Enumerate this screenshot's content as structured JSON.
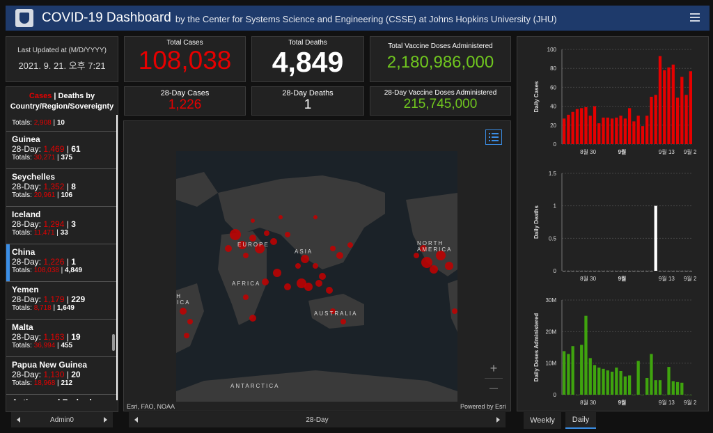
{
  "header": {
    "title": "COVID-19 Dashboard",
    "subtitle": "by the Center for Systems Science and Engineering (CSSE) at Johns Hopkins University (JHU)"
  },
  "updated": {
    "label": "Last Updated at (M/D/YYYY)",
    "value": "2021. 9. 21. 오후 7:21"
  },
  "stats": {
    "total_cases_label": "Total Cases",
    "total_cases": "108,038",
    "total_deaths_label": "Total Deaths",
    "total_deaths": "4,849",
    "total_vaccine_label": "Total Vaccine Doses Administered",
    "total_vaccine": "2,180,986,000",
    "cases28_label": "28-Day Cases",
    "cases28": "1,226",
    "deaths28_label": "28-Day Deaths",
    "deaths28": "1",
    "vaccine28_label": "28-Day Vaccine Doses Administered",
    "vaccine28": "215,745,000"
  },
  "list": {
    "head_cases": "Cases",
    "head_sep": " | ",
    "head_rest": "Deaths by",
    "head_line2": "Country/Region/Sovereignty",
    "partial_totals_prefix": "Totals: ",
    "partial_totals_cases": "2,908",
    "partial_totals_deaths": "10",
    "day_prefix": "28-Day: ",
    "totals_prefix": "Totals: ",
    "items": [
      {
        "name": "Guinea",
        "d_cases": "1,469",
        "d_deaths": "61",
        "t_cases": "30,271",
        "t_deaths": "375"
      },
      {
        "name": "Seychelles",
        "d_cases": "1,352",
        "d_deaths": "8",
        "t_cases": "20,961",
        "t_deaths": "106"
      },
      {
        "name": "Iceland",
        "d_cases": "1,294",
        "d_deaths": "3",
        "t_cases": "11,471",
        "t_deaths": "33"
      },
      {
        "name": "China",
        "d_cases": "1,226",
        "d_deaths": "1",
        "t_cases": "108,038",
        "t_deaths": "4,849"
      },
      {
        "name": "Yemen",
        "d_cases": "1,179",
        "d_deaths": "229",
        "t_cases": "8,718",
        "t_deaths": "1,649"
      },
      {
        "name": "Malta",
        "d_cases": "1,163",
        "d_deaths": "19",
        "t_cases": "36,994",
        "t_deaths": "455"
      },
      {
        "name": "Papua New Guinea",
        "d_cases": "1,130",
        "d_deaths": "20",
        "t_cases": "18,968",
        "t_deaths": "212"
      },
      {
        "name": "Antigua and Barbuda"
      }
    ],
    "pager_label": "Admin0"
  },
  "map": {
    "labels": [
      "EUROPE",
      "ASIA",
      "NORTH AMERICA",
      "AFRICA",
      "SOUTH AMERICA",
      "AUSTRALIA",
      "ANTARCTICA"
    ],
    "attribution": "Esri, FAO, NOAA",
    "powered": "Powered by Esri",
    "pager_label": "28-Day",
    "zoom_in": "+",
    "zoom_out": "—"
  },
  "tabs": {
    "weekly": "Weekly",
    "daily": "Daily"
  },
  "colors": {
    "cases": "#e60000",
    "deaths": "#ffffff",
    "vaccine": "#70c61f",
    "accent": "#3b8ee6"
  },
  "chart_data": [
    {
      "type": "bar",
      "ylabel": "Daily Cases",
      "ylim": [
        0,
        100
      ],
      "yticks": [
        "0",
        "20",
        "40",
        "60",
        "80",
        "100"
      ],
      "xticks": [
        "8월 30",
        "9월",
        "9월 13",
        "9월 2"
      ],
      "values": [
        27,
        31,
        34,
        37,
        38,
        39,
        30,
        40,
        22,
        28,
        28,
        27,
        28,
        30,
        27,
        38,
        24,
        30,
        19,
        30,
        50,
        52,
        93,
        78,
        81,
        84,
        49,
        71,
        52,
        77
      ],
      "color": "#e60000"
    },
    {
      "type": "bar",
      "ylabel": "Daily Deaths",
      "ylim": [
        0,
        1.5
      ],
      "yticks": [
        "0",
        "0.5",
        "1",
        "1.5"
      ],
      "xticks": [
        "8월 30",
        "9월",
        "9월 13",
        "9월 2"
      ],
      "values": [
        0,
        0,
        0,
        0,
        0,
        0,
        0,
        0,
        0,
        0,
        0,
        0,
        0,
        0,
        0,
        0,
        0,
        0,
        0,
        0,
        0,
        1,
        0,
        0,
        0,
        0,
        0,
        0,
        0,
        0
      ],
      "color": "#ffffff"
    },
    {
      "type": "bar",
      "ylabel": "Daily Doses Administered",
      "ylim": [
        0,
        30000000
      ],
      "yticks": [
        "0",
        "10M",
        "20M",
        "30M"
      ],
      "xticks": [
        "8월 30",
        "9월",
        "9월 13",
        "9월 2"
      ],
      "values": [
        13800000,
        12900000,
        15400000,
        0,
        15800000,
        25000000,
        11600000,
        9400000,
        8600000,
        8200000,
        7700000,
        7300000,
        8600000,
        7500000,
        5800000,
        6100000,
        0,
        10700000,
        0,
        5300000,
        12900000,
        4600000,
        4600000,
        0,
        8800000,
        4300000,
        4000000,
        3800000,
        0,
        0
      ],
      "color": "#3fa40e"
    }
  ]
}
